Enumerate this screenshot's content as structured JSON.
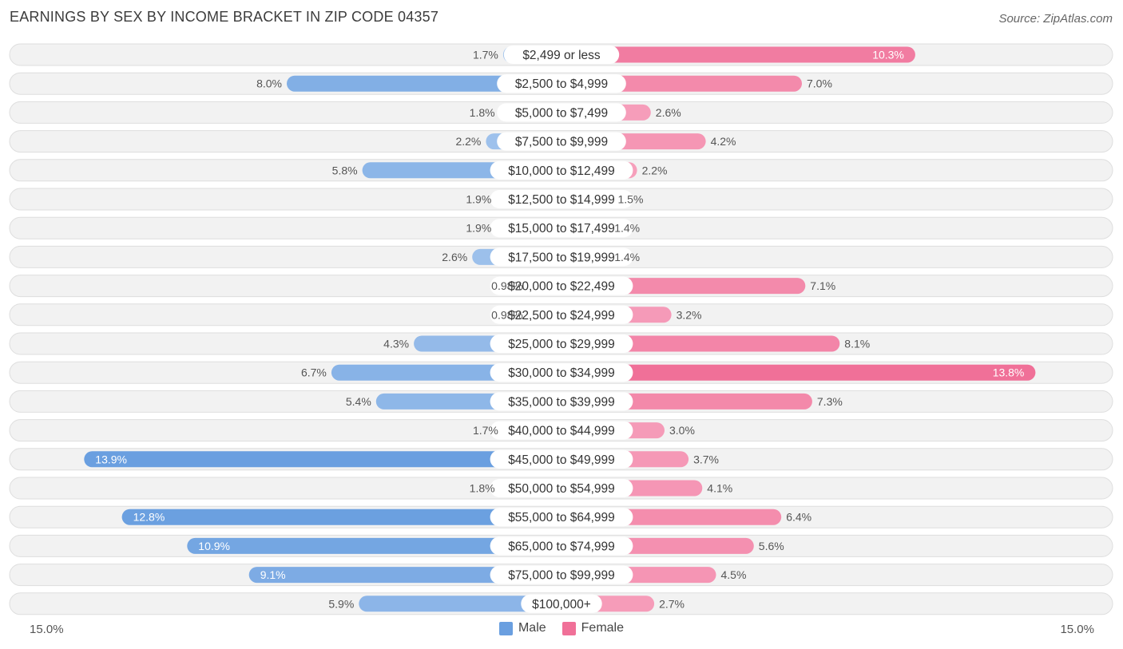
{
  "title": "EARNINGS BY SEX BY INCOME BRACKET IN ZIP CODE 04357",
  "source": "Source: ZipAtlas.com",
  "colors": {
    "male": "#6a9fe0",
    "male_light": "#a8c8ee",
    "female": "#f07098",
    "female_light": "#f7a8c2",
    "row_bg": "#f2f2f2",
    "row_border": "#dedede"
  },
  "legend": {
    "male": "Male",
    "female": "Female"
  },
  "axis": {
    "left_label": "15.0%",
    "right_label": "15.0%"
  },
  "chart_data": {
    "type": "bar",
    "orientation": "horizontal-diverging",
    "title": "EARNINGS BY SEX BY INCOME BRACKET IN ZIP CODE 04357",
    "xlim": [
      -15,
      15
    ],
    "categories": [
      "$2,499 or less",
      "$2,500 to $4,999",
      "$5,000 to $7,499",
      "$7,500 to $9,999",
      "$10,000 to $12,499",
      "$12,500 to $14,999",
      "$15,000 to $17,499",
      "$17,500 to $19,999",
      "$20,000 to $22,499",
      "$22,500 to $24,999",
      "$25,000 to $29,999",
      "$30,000 to $34,999",
      "$35,000 to $39,999",
      "$40,000 to $44,999",
      "$45,000 to $49,999",
      "$50,000 to $54,999",
      "$55,000 to $64,999",
      "$65,000 to $74,999",
      "$75,000 to $99,999",
      "$100,000+"
    ],
    "series": [
      {
        "name": "Male",
        "values": [
          1.7,
          8.0,
          1.8,
          2.2,
          5.8,
          1.9,
          1.9,
          2.6,
          0.98,
          0.98,
          4.3,
          6.7,
          5.4,
          1.7,
          13.9,
          1.8,
          12.8,
          10.9,
          9.1,
          5.9
        ],
        "labels": [
          "1.7%",
          "8.0%",
          "1.8%",
          "2.2%",
          "5.8%",
          "1.9%",
          "1.9%",
          "2.6%",
          "0.98%",
          "0.98%",
          "4.3%",
          "6.7%",
          "5.4%",
          "1.7%",
          "13.9%",
          "1.8%",
          "12.8%",
          "10.9%",
          "9.1%",
          "5.9%"
        ]
      },
      {
        "name": "Female",
        "values": [
          10.3,
          7.0,
          2.6,
          4.2,
          2.2,
          1.5,
          1.4,
          1.4,
          7.1,
          3.2,
          8.1,
          13.8,
          7.3,
          3.0,
          3.7,
          4.1,
          6.4,
          5.6,
          4.5,
          2.7
        ],
        "labels": [
          "10.3%",
          "7.0%",
          "2.6%",
          "4.2%",
          "2.2%",
          "1.5%",
          "1.4%",
          "1.4%",
          "7.1%",
          "3.2%",
          "8.1%",
          "13.8%",
          "7.3%",
          "3.0%",
          "3.7%",
          "4.1%",
          "6.4%",
          "5.6%",
          "4.5%",
          "2.7%"
        ]
      }
    ]
  }
}
